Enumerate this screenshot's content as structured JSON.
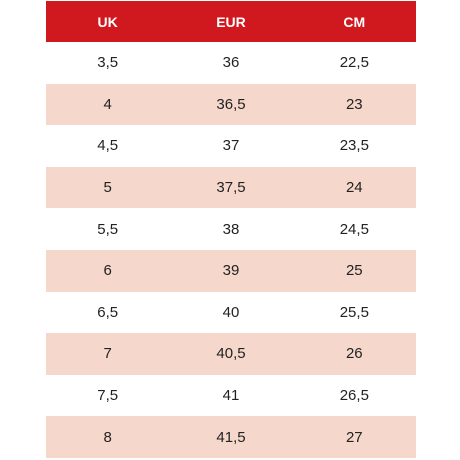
{
  "colors": {
    "header_bg": "#d0181f",
    "header_text": "#ffffff",
    "stripe": "#f6d7cb",
    "row_bg": "#ffffff",
    "text": "#222222"
  },
  "table": {
    "headers": [
      "UK",
      "EUR",
      "CM"
    ],
    "rows": [
      [
        "3,5",
        "36",
        "22,5"
      ],
      [
        "4",
        "36,5",
        "23"
      ],
      [
        "4,5",
        "37",
        "23,5"
      ],
      [
        "5",
        "37,5",
        "24"
      ],
      [
        "5,5",
        "38",
        "24,5"
      ],
      [
        "6",
        "39",
        "25"
      ],
      [
        "6,5",
        "40",
        "25,5"
      ],
      [
        "7",
        "40,5",
        "26"
      ],
      [
        "7,5",
        "41",
        "26,5"
      ],
      [
        "8",
        "41,5",
        "27"
      ]
    ]
  }
}
